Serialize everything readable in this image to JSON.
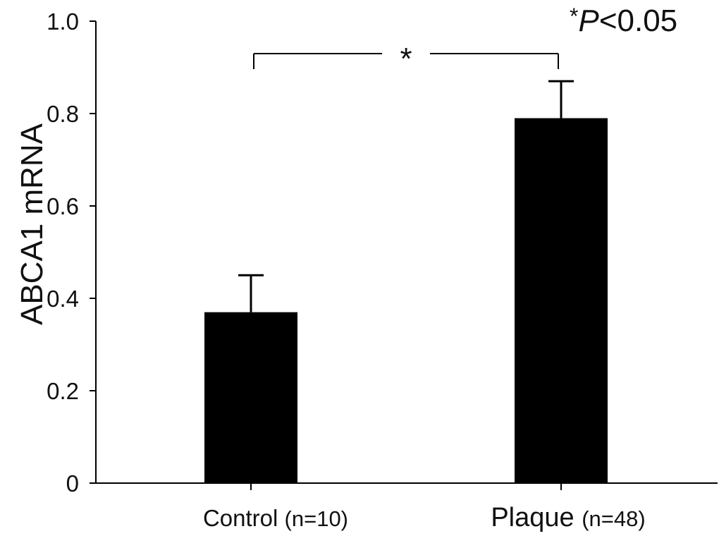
{
  "chart_data": {
    "type": "bar",
    "ylabel": "ABCA1 mRNA",
    "ylim": [
      0,
      1.0
    ],
    "yticks": [
      {
        "value": 0,
        "label": "0"
      },
      {
        "value": 0.2,
        "label": "0.2"
      },
      {
        "value": 0.4,
        "label": "0.4"
      },
      {
        "value": 0.6,
        "label": "0.6"
      },
      {
        "value": 0.8,
        "label": "0.8"
      },
      {
        "value": 1.0,
        "label": "1.0"
      }
    ],
    "categories": [
      {
        "name": "Control",
        "n_label": "(n=10)"
      },
      {
        "name": "Plaque",
        "n_label": "(n=48)"
      }
    ],
    "values": [
      0.37,
      0.79
    ],
    "errors": [
      0.08,
      0.08
    ],
    "significance": {
      "between": [
        0,
        1
      ],
      "symbol": "*"
    },
    "annotation": {
      "star": "*",
      "p": "P",
      "rest": "<0.05"
    },
    "bar_color": "#000000",
    "grid": false,
    "legend": "none"
  }
}
